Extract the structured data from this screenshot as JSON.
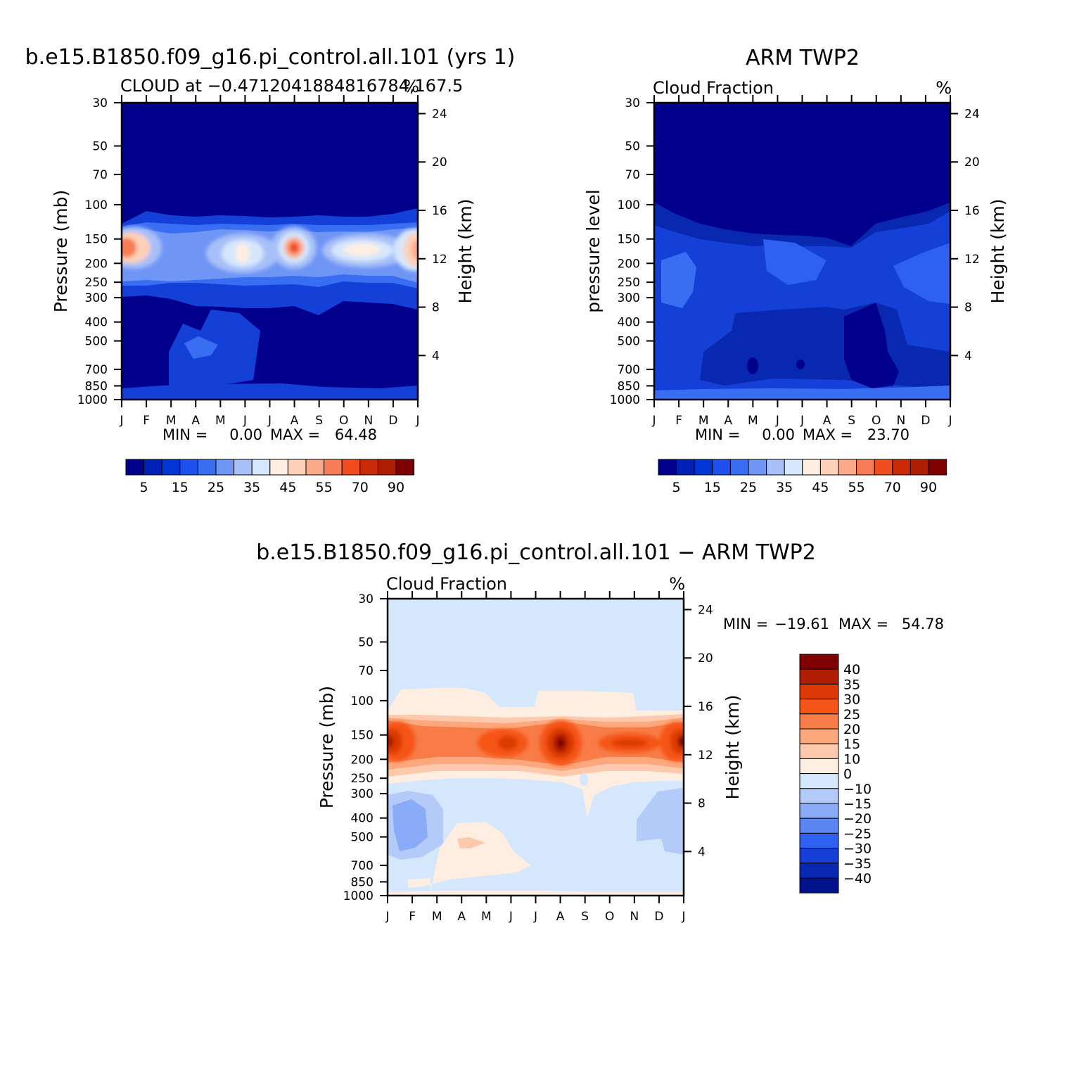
{
  "chart_data": [
    {
      "type": "heatmap",
      "title": "b.e15.B1850.f09_g16.pi_control.all.101 (yrs 1)",
      "subtitle_left": "CLOUD at −0.4712041884816784,167.5",
      "subtitle_right": "%",
      "ylabel": "Pressure (mb)",
      "y2label": "Height (km)",
      "x_ticks": [
        "J",
        "F",
        "M",
        "A",
        "M",
        "J",
        "J",
        "A",
        "S",
        "O",
        "N",
        "D",
        "J"
      ],
      "y_ticks": [
        30,
        50,
        70,
        100,
        150,
        200,
        250,
        300,
        400,
        500,
        700,
        850,
        1000
      ],
      "y2_ticks": [
        24,
        20,
        16,
        12,
        8,
        4
      ],
      "ylim": [
        30,
        1000
      ],
      "y_scale": "log",
      "min_label": "MIN =",
      "min_value": "0.00",
      "max_label": "MAX =",
      "max_value": "64.48",
      "colorbar_labels": [
        "5",
        "15",
        "25",
        "35",
        "45",
        "55",
        "70",
        "90"
      ],
      "colorbar_orientation": "horizontal",
      "peak_months": [
        "J",
        "A",
        "N",
        "J"
      ],
      "peak_pressure": 150
    },
    {
      "type": "heatmap",
      "title": "ARM TWP2",
      "subtitle_left": "Cloud Fraction",
      "subtitle_right": "%",
      "ylabel": "pressure level",
      "y2label": "Height (km)",
      "x_ticks": [
        "J",
        "F",
        "M",
        "A",
        "M",
        "J",
        "J",
        "A",
        "S",
        "O",
        "N",
        "D",
        "J"
      ],
      "y_ticks": [
        30,
        50,
        70,
        100,
        150,
        200,
        250,
        300,
        400,
        500,
        700,
        850,
        1000
      ],
      "y2_ticks": [
        24,
        20,
        16,
        12,
        8,
        4
      ],
      "ylim": [
        30,
        1000
      ],
      "y_scale": "log",
      "min_label": "MIN =",
      "min_value": "0.00",
      "max_label": "MAX =",
      "max_value": "23.70",
      "colorbar_labels": [
        "5",
        "15",
        "25",
        "35",
        "45",
        "55",
        "70",
        "90"
      ],
      "colorbar_orientation": "horizontal"
    },
    {
      "type": "heatmap",
      "title": "b.e15.B1850.f09_g16.pi_control.all.101 − ARM TWP2",
      "subtitle_left": "Cloud Fraction",
      "subtitle_right": "%",
      "ylabel": "Pressure (mb)",
      "y2label": "Height (km)",
      "x_ticks": [
        "J",
        "F",
        "M",
        "A",
        "M",
        "J",
        "J",
        "A",
        "S",
        "O",
        "N",
        "D",
        "J"
      ],
      "y_ticks": [
        30,
        50,
        70,
        100,
        150,
        200,
        250,
        300,
        400,
        500,
        700,
        850,
        1000
      ],
      "y2_ticks": [
        24,
        20,
        16,
        12,
        8,
        4
      ],
      "ylim": [
        30,
        1000
      ],
      "y_scale": "log",
      "min_label": "MIN =",
      "min_value": "−19.61",
      "max_label": "MAX =",
      "max_value": "54.78",
      "colorbar_labels": [
        "40",
        "35",
        "30",
        "25",
        "20",
        "15",
        "10",
        "0",
        "−10",
        "−15",
        "−20",
        "−25",
        "−30",
        "−35",
        "−40"
      ],
      "colorbar_orientation": "vertical"
    }
  ],
  "colors": {
    "seq_cmap": [
      "#00008c",
      "#0020b8",
      "#0036d6",
      "#1e50f0",
      "#3a6ef2",
      "#6f95f5",
      "#a8c0f8",
      "#d5e7fc",
      "#feeee2",
      "#fdd0b8",
      "#fca989",
      "#f87c55",
      "#f04c20",
      "#cc2a06",
      "#b01e02",
      "#7e0000"
    ],
    "div_cmap": [
      "#7e0000",
      "#b01e02",
      "#db3a06",
      "#f55516",
      "#f87c48",
      "#fca77c",
      "#fdc9ac",
      "#feeee2",
      "#d5e7fc",
      "#b4cbf9",
      "#8aabf7",
      "#5a85f3",
      "#2e60f1",
      "#1540d8",
      "#0828b0",
      "#00128c"
    ],
    "axis": "#000000",
    "background": "#ffffff"
  }
}
